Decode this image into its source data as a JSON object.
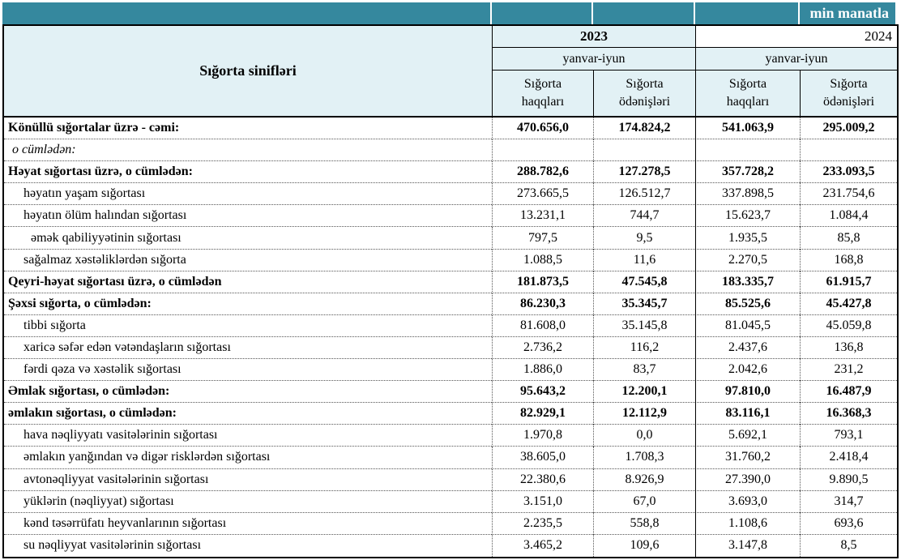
{
  "unit_label": "min manatla",
  "colors": {
    "teal": "#35889e",
    "header_bg": "#e2f1f5"
  },
  "header": {
    "class_column": "Sığorta sinifləri",
    "year_2023": "2023",
    "year_2024": "2024",
    "period": "yanvar-iyun",
    "premiums": {
      "l1": "Sığorta",
      "l2": "haqqları"
    },
    "payments": {
      "l1": "Sığorta",
      "l2": "ödənişləri"
    }
  },
  "rows": [
    {
      "label": "Könüllü sığortalar üzrə - cəmi:",
      "style": "bold",
      "indent": 0,
      "values": [
        "470.656,0",
        "174.824,2",
        "541.063,9",
        "295.009,2"
      ]
    },
    {
      "label": "o cümlədən:",
      "style": "italic",
      "indent": 0,
      "values": [
        "",
        "",
        "",
        ""
      ]
    },
    {
      "label": "Həyat sığortası üzrə, o cümlədən:",
      "style": "bold",
      "indent": 0,
      "values": [
        "288.782,6",
        "127.278,5",
        "357.728,2",
        "233.093,5"
      ]
    },
    {
      "label": "həyatın yaşam sığortası",
      "style": "normal",
      "indent": 1,
      "values": [
        "273.665,5",
        "126.512,7",
        "337.898,5",
        "231.754,6"
      ]
    },
    {
      "label": "həyatın ölüm halından sığortası",
      "style": "normal",
      "indent": 1,
      "values": [
        "13.231,1",
        "744,7",
        "15.623,7",
        "1.084,4"
      ]
    },
    {
      "label": "əmək qabiliyyətinin sığortası",
      "style": "normal",
      "indent": 2,
      "values": [
        "797,5",
        "9,5",
        "1.935,5",
        "85,8"
      ]
    },
    {
      "label": "sağalmaz xəstəliklərdən sığorta",
      "style": "normal",
      "indent": 1,
      "values": [
        "1.088,5",
        "11,6",
        "2.270,5",
        "168,8"
      ]
    },
    {
      "label": "Qeyri-həyat sığortası üzrə, o cümlədən",
      "style": "bold",
      "indent": 0,
      "values": [
        "181.873,5",
        "47.545,8",
        "183.335,7",
        "61.915,7"
      ]
    },
    {
      "label": "Şəxsi sığorta,  o cümlədən:",
      "style": "bold",
      "indent": 0,
      "values": [
        "86.230,3",
        "35.345,7",
        "85.525,6",
        "45.427,8"
      ]
    },
    {
      "label": "tibbi sığorta",
      "style": "normal",
      "indent": 1,
      "values": [
        "81.608,0",
        "35.145,8",
        "81.045,5",
        "45.059,8"
      ]
    },
    {
      "label": "xaricə səfər edən vətəndaşların sığortası",
      "style": "normal",
      "indent": 1,
      "values": [
        "2.736,2",
        "116,2",
        "2.437,6",
        "136,8"
      ]
    },
    {
      "label": "fərdi qəza və xəstəlik sığortası",
      "style": "normal",
      "indent": 1,
      "values": [
        "1.886,0",
        "83,7",
        "2.042,6",
        "231,2"
      ]
    },
    {
      "label": "Əmlak sığortası, o cümlədən:",
      "style": "bold",
      "indent": 0,
      "values": [
        "95.643,2",
        "12.200,1",
        "97.810,0",
        "16.487,9"
      ]
    },
    {
      "label": "əmlakın sığortası,  o cümlədən:",
      "style": "bold",
      "indent": 0,
      "values": [
        "82.929,1",
        "12.112,9",
        "83.116,1",
        "16.368,3"
      ]
    },
    {
      "label": "hava nəqliyyatı vasitələrinin sığortası",
      "style": "normal",
      "indent": 1,
      "values": [
        "1.970,8",
        "0,0",
        "5.692,1",
        "793,1"
      ]
    },
    {
      "label": "əmlakın yanğından və digər risklərdən sığortası",
      "style": "normal",
      "indent": 1,
      "values": [
        "38.605,0",
        "1.708,3",
        "31.760,2",
        "2.418,4"
      ]
    },
    {
      "label": "avtonəqliyyat vasitələrinin sığortası",
      "style": "normal",
      "indent": 1,
      "values": [
        "22.380,6",
        "8.926,9",
        "27.390,0",
        "9.890,5"
      ]
    },
    {
      "label": "yüklərin (nəqliyyat) sığortası",
      "style": "normal",
      "indent": 1,
      "values": [
        "3.151,0",
        "67,0",
        "3.693,0",
        "314,7"
      ]
    },
    {
      "label": "kənd təsərrüfatı heyvanlarının sığortası",
      "style": "normal",
      "indent": 1,
      "values": [
        "2.235,5",
        "558,8",
        "1.108,6",
        "693,6"
      ]
    },
    {
      "label": "su nəqliyyat vasitələrinin sığortası",
      "style": "normal",
      "indent": 1,
      "values": [
        "3.465,2",
        "109,6",
        "3.147,8",
        "8,5"
      ]
    }
  ]
}
